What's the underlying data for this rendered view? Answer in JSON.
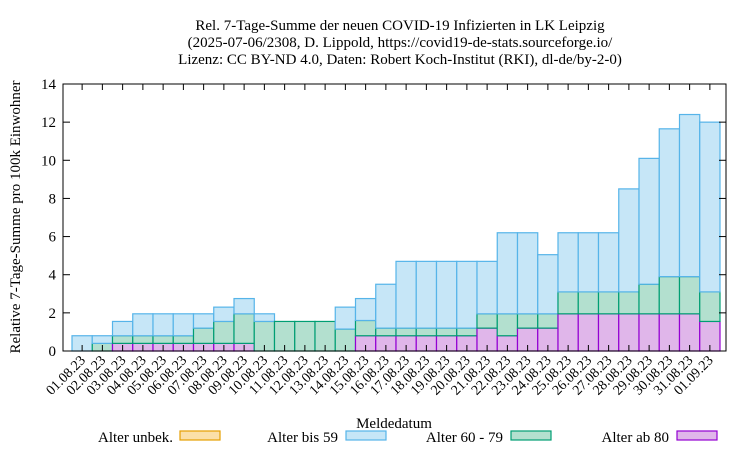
{
  "chart_data": {
    "type": "bar",
    "stacked": true,
    "title": [
      "Rel. 7-Tage-Summe der neuen COVID-19 Infizierten in LK Leipzig",
      "(2025-07-06/2308, D. Lippold, https://covid19-de-stats.sourceforge.io/",
      "Lizenz: CC BY-ND 4.0, Daten: Robert Koch-Institut (RKI), dl-de/by-2-0)"
    ],
    "xlabel": "Meldedatum",
    "ylabel": "Relative 7-Tage-Summe pro 100k Einwohner",
    "ylim": [
      0,
      14
    ],
    "yticks": [
      0,
      2,
      4,
      6,
      8,
      10,
      12,
      14
    ],
    "legend_position": "bottom",
    "categories": [
      "01.08.23",
      "02.08.23",
      "03.08.23",
      "04.08.23",
      "05.08.23",
      "06.08.23",
      "07.08.23",
      "08.08.23",
      "09.08.23",
      "10.08.23",
      "11.08.23",
      "12.08.23",
      "13.08.23",
      "14.08.23",
      "15.08.23",
      "16.08.23",
      "17.08.23",
      "18.08.23",
      "19.08.23",
      "20.08.23",
      "21.08.23",
      "22.08.23",
      "23.08.23",
      "24.08.23",
      "25.08.23",
      "26.08.23",
      "27.08.23",
      "28.08.23",
      "29.08.23",
      "30.08.23",
      "31.08.23",
      "01.09.23"
    ],
    "series": [
      {
        "name": "Alter ab 80",
        "fill": "#e0b6ea",
        "stroke": "#9400d3",
        "values": [
          0,
          0,
          0.4,
          0.4,
          0.4,
          0.4,
          0.4,
          0.4,
          0.4,
          0,
          0,
          0,
          0,
          0,
          0.8,
          0.8,
          0.8,
          0.8,
          0.8,
          0.8,
          1.2,
          0.8,
          1.2,
          1.2,
          1.95,
          1.95,
          1.95,
          1.95,
          1.95,
          1.95,
          1.95,
          1.55
        ]
      },
      {
        "name": "Alter 60 - 79",
        "fill": "#b3e0cf",
        "stroke": "#009e73",
        "values": [
          0,
          0.4,
          0.4,
          0.4,
          0.4,
          0.4,
          0.8,
          1.15,
          1.55,
          1.55,
          1.55,
          1.55,
          1.55,
          1.15,
          0.8,
          0.4,
          0.4,
          0.4,
          0.4,
          0.4,
          0.75,
          1.15,
          0.75,
          0.75,
          1.15,
          1.15,
          1.15,
          1.15,
          1.55,
          1.95,
          1.95,
          1.55
        ]
      },
      {
        "name": "Alter bis 59",
        "fill": "#c6e6f7",
        "stroke": "#56b4e9",
        "values": [
          0.8,
          0.4,
          0.75,
          1.15,
          1.15,
          1.15,
          0.75,
          0.75,
          0.8,
          0.4,
          0,
          0,
          0,
          1.15,
          1.15,
          2.3,
          3.5,
          3.5,
          3.5,
          3.5,
          2.75,
          4.25,
          4.25,
          3.1,
          3.1,
          3.1,
          3.1,
          5.4,
          6.6,
          7.75,
          8.5,
          8.9
        ]
      },
      {
        "name": "Alter unbek.",
        "fill": "#fbe0a8",
        "stroke": "#e69f00",
        "values": [
          0,
          0,
          0,
          0,
          0,
          0,
          0,
          0,
          0,
          0,
          0,
          0,
          0,
          0,
          0,
          0,
          0,
          0,
          0,
          0,
          0,
          0,
          0,
          0,
          0,
          0,
          0,
          0,
          0,
          0,
          0,
          0
        ]
      }
    ],
    "legend_order": [
      "Alter unbek.",
      "Alter bis 59",
      "Alter 60 - 79",
      "Alter ab 80"
    ]
  }
}
